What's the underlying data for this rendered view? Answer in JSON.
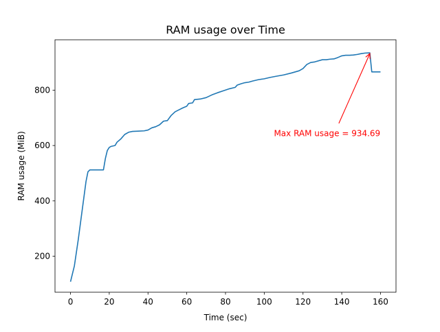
{
  "chart_data": {
    "type": "line",
    "title": "RAM usage over Time",
    "xlabel": "Time (sec)",
    "ylabel": "RAM usage (MiB)",
    "xlim": [
      -8,
      168
    ],
    "ylim": [
      70,
      982
    ],
    "xticks": [
      0,
      20,
      40,
      60,
      80,
      100,
      120,
      140,
      160
    ],
    "yticks": [
      200,
      400,
      600,
      800
    ],
    "grid": false,
    "line_color": "#1f77b4",
    "annotation_color": "#ff0000",
    "series": [
      {
        "x": [
          0,
          2,
          4,
          6,
          8,
          9,
          10,
          12,
          15,
          17,
          18,
          19,
          20,
          21,
          23,
          24,
          26,
          28,
          30,
          32,
          35,
          38,
          40,
          42,
          44,
          46,
          48,
          50,
          52,
          54,
          56,
          58,
          60,
          61,
          63,
          64,
          67,
          70,
          73,
          76,
          79,
          82,
          85,
          86,
          88,
          90,
          92,
          94,
          97,
          100,
          103,
          106,
          110,
          114,
          116,
          118,
          120,
          122,
          124,
          126,
          130,
          132,
          134,
          136,
          138,
          140,
          142,
          144,
          146,
          148,
          150,
          152,
          154.5,
          155.5,
          157,
          160
        ],
        "values": [
          108,
          165,
          260,
          365,
          470,
          505,
          512,
          512,
          512,
          512,
          553,
          582,
          593,
          597,
          600,
          612,
          624,
          640,
          648,
          651,
          652,
          653,
          656,
          664,
          668,
          675,
          688,
          690,
          709,
          722,
          729,
          736,
          742,
          752,
          754,
          766,
          768,
          773,
          783,
          791,
          798,
          805,
          810,
          818,
          823,
          827,
          829,
          833,
          838,
          841,
          846,
          850,
          855,
          862,
          866,
          870,
          878,
          893,
          900,
          902,
          910,
          910,
          912,
          913,
          918,
          924,
          926,
          926,
          927,
          929,
          932,
          934,
          934.69,
          866,
          866,
          866
        ]
      }
    ],
    "annotation": {
      "text": "Max RAM usage = 934.69",
      "point": [
        154.5,
        934.69
      ],
      "text_pos": [
        105,
        634
      ]
    }
  }
}
